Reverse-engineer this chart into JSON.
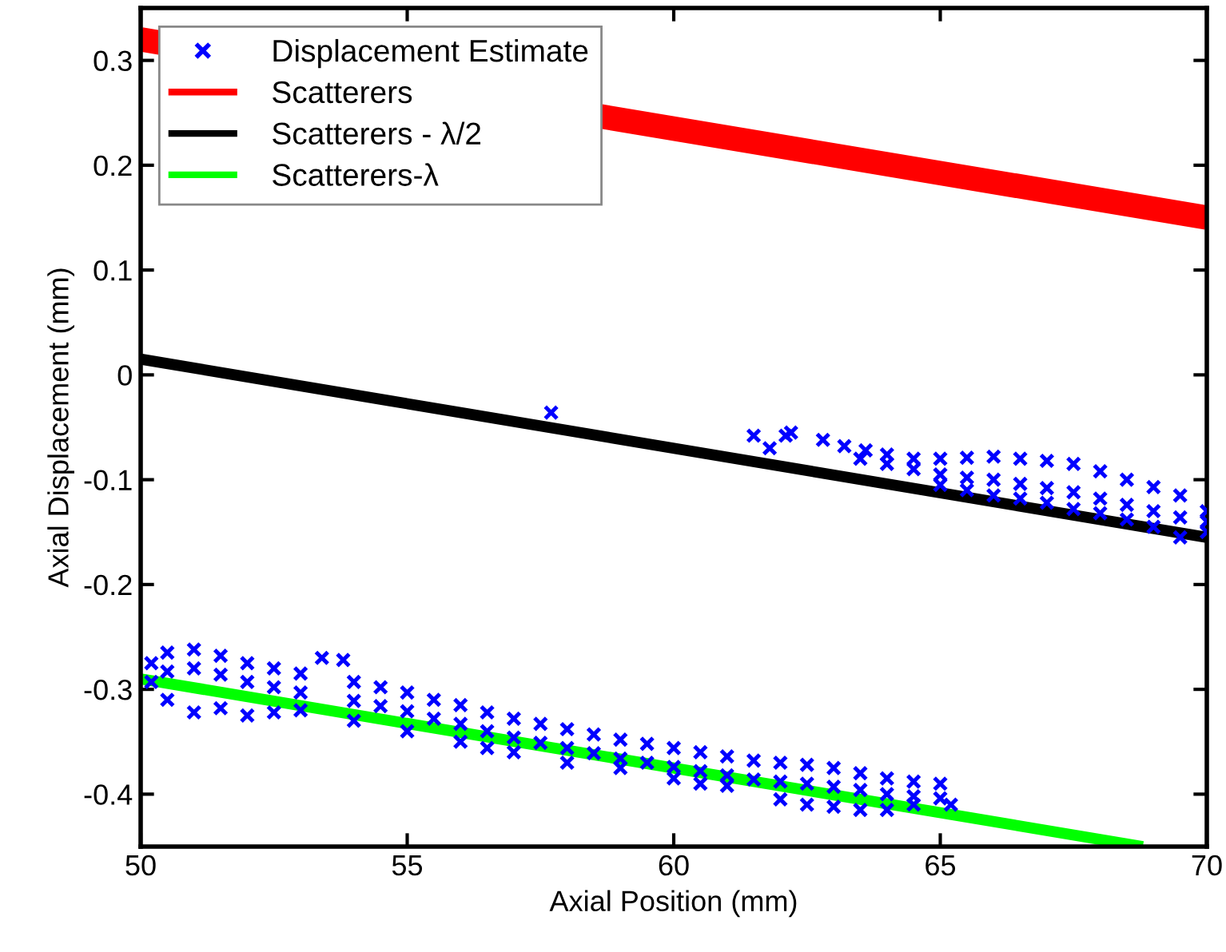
{
  "chart_data": {
    "type": "scatter",
    "xlabel": "Axial Position (mm)",
    "ylabel": "Axial Displacement (mm)",
    "xlim": [
      50,
      70
    ],
    "ylim": [
      -0.45,
      0.35
    ],
    "xticks": [
      50,
      55,
      60,
      65,
      70
    ],
    "yticks": [
      -0.4,
      -0.3,
      -0.2,
      -0.1,
      0,
      0.1,
      0.2,
      0.3
    ],
    "grid": false,
    "legend": "top left",
    "series": [
      {
        "name": "Displacement Estimate",
        "marker": "cross",
        "color": "#0000ff",
        "x": [
          50.2,
          50.5,
          51,
          51.5,
          52,
          52.5,
          53,
          53.4,
          53.8,
          54,
          54.5,
          55,
          55.5,
          56,
          56.5,
          57,
          57.5,
          58,
          58.5,
          59,
          59.5,
          60,
          60.5,
          61,
          61.5,
          62,
          62.5,
          63,
          63.5,
          64,
          64.5,
          65,
          50.2,
          50.5,
          51,
          51.5,
          52,
          52.5,
          53,
          54,
          54.5,
          55,
          55.5,
          56,
          56.5,
          57,
          57.5,
          58,
          58.5,
          59,
          59.5,
          60,
          60.5,
          61,
          61.5,
          62,
          62.5,
          63,
          63.5,
          64,
          64.5,
          65,
          50.5,
          51,
          51.5,
          52,
          52.5,
          53,
          54,
          55,
          56,
          56.5,
          57,
          58,
          59,
          60,
          60.5,
          61,
          62,
          62.5,
          63,
          63.5,
          64,
          64.5,
          65.2,
          57.7,
          61.5,
          61.8,
          62.1,
          62.2,
          62.8,
          63.2,
          63.6,
          64,
          64.5,
          65,
          65.5,
          66,
          66.5,
          67,
          67.5,
          68,
          68.5,
          69,
          69.5,
          70,
          63.5,
          64,
          64.5,
          65,
          65.5,
          66,
          66.5,
          67,
          67.5,
          68,
          68.5,
          69,
          69.5,
          70,
          65,
          65.5,
          66,
          66.5,
          67,
          67.5,
          68,
          68.5,
          69,
          69.5,
          70
        ],
        "values": [
          -0.275,
          -0.265,
          -0.262,
          -0.268,
          -0.275,
          -0.28,
          -0.285,
          -0.27,
          -0.272,
          -0.293,
          -0.298,
          -0.303,
          -0.31,
          -0.315,
          -0.322,
          -0.328,
          -0.333,
          -0.338,
          -0.343,
          -0.348,
          -0.352,
          -0.356,
          -0.36,
          -0.364,
          -0.368,
          -0.37,
          -0.372,
          -0.375,
          -0.38,
          -0.385,
          -0.388,
          -0.39,
          -0.293,
          -0.283,
          -0.28,
          -0.286,
          -0.293,
          -0.298,
          -0.303,
          -0.311,
          -0.316,
          -0.321,
          -0.328,
          -0.333,
          -0.34,
          -0.346,
          -0.351,
          -0.356,
          -0.361,
          -0.366,
          -0.37,
          -0.374,
          -0.378,
          -0.382,
          -0.386,
          -0.388,
          -0.39,
          -0.393,
          -0.396,
          -0.4,
          -0.402,
          -0.404,
          -0.31,
          -0.322,
          -0.318,
          -0.325,
          -0.322,
          -0.32,
          -0.33,
          -0.34,
          -0.35,
          -0.356,
          -0.36,
          -0.37,
          -0.375,
          -0.385,
          -0.39,
          -0.392,
          -0.405,
          -0.41,
          -0.412,
          -0.415,
          -0.415,
          -0.41,
          -0.41,
          -0.036,
          -0.058,
          -0.07,
          -0.058,
          -0.055,
          -0.062,
          -0.068,
          -0.072,
          -0.076,
          -0.08,
          -0.08,
          -0.079,
          -0.078,
          -0.08,
          -0.082,
          -0.085,
          -0.092,
          -0.1,
          -0.107,
          -0.115,
          -0.13,
          -0.08,
          -0.085,
          -0.09,
          -0.095,
          -0.098,
          -0.1,
          -0.104,
          -0.108,
          -0.112,
          -0.118,
          -0.124,
          -0.13,
          -0.136,
          -0.14,
          -0.105,
          -0.11,
          -0.115,
          -0.118,
          -0.122,
          -0.128,
          -0.132,
          -0.138,
          -0.145,
          -0.155,
          -0.15
        ]
      },
      {
        "name": "Scatterers",
        "type": "line",
        "color": "#ff0000",
        "x": [
          50,
          70
        ],
        "values": [
          0.32,
          0.15
        ]
      },
      {
        "name": "Scatterers - λ/2",
        "type": "line",
        "color": "#000000",
        "x": [
          50,
          70
        ],
        "values": [
          0.015,
          -0.155
        ]
      },
      {
        "name": "Scatterers-λ",
        "type": "line",
        "color": "#00ff00",
        "x": [
          50,
          68.8
        ],
        "values": [
          -0.29,
          -0.45
        ]
      }
    ]
  }
}
